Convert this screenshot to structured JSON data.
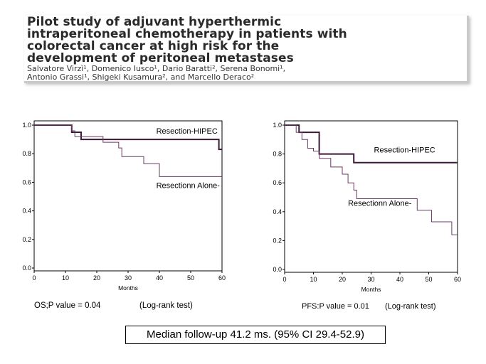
{
  "paper": {
    "title_lines": [
      "Pilot study of adjuvant hyperthermic",
      "intraperitoneal chemotherapy in patients with",
      "colorectal cancer at high risk for the",
      "development of peritoneal metastases"
    ],
    "author_lines": [
      "Salvatore Virzì¹, Domenico Iusco¹, Dario Baratti², Serena Bonomi¹,",
      "Antonio Grassi¹, Shigeki Kusamura², and Marcello Deraco²"
    ]
  },
  "captions": {
    "os_pvalue": "OS;P value = 0.04",
    "os_test": "(Log-rank test)",
    "pfs_pvalue": "PFS:P value = 0.01",
    "pfs_test": "(Log-rank test)"
  },
  "median_followup": "Median follow-up 41.2 ms. (95% CI 29.4-52.9)",
  "chart_data": [
    {
      "type": "line",
      "subtype": "kaplan-meier step curve",
      "xlabel": "Months",
      "ylabel": "",
      "xlim": [
        0,
        60
      ],
      "ylim": [
        0,
        1.0
      ],
      "xticks": [
        "0",
        "10",
        "20",
        "30",
        "40",
        "50",
        "60"
      ],
      "yticks": [
        "0.0",
        "0.2",
        "0.4",
        "0.6",
        "0.8",
        "1.0"
      ],
      "series": [
        {
          "name": "Resection-HIPEC",
          "color": "#3a1a36",
          "stroke_width": 2,
          "steps": [
            [
              0,
              1.0
            ],
            [
              12,
              0.95
            ],
            [
              15,
              0.9
            ],
            [
              59,
              0.83
            ],
            [
              60,
              0.83
            ]
          ]
        },
        {
          "name": "Resectionn Alone-",
          "color": "#6a3a66",
          "stroke_width": 1,
          "steps": [
            [
              0,
              1.0
            ],
            [
              12,
              0.96
            ],
            [
              13,
              0.92
            ],
            [
              22,
              0.88
            ],
            [
              27,
              0.84
            ],
            [
              28,
              0.78
            ],
            [
              35,
              0.73
            ],
            [
              40,
              0.64
            ],
            [
              60,
              0.64
            ]
          ]
        }
      ],
      "labels": [
        {
          "text": "Resection-HIPEC",
          "x": 39,
          "y": 0.94
        },
        {
          "text": "Resectionn Alone-",
          "x": 39,
          "y": 0.56
        }
      ]
    },
    {
      "type": "line",
      "subtype": "kaplan-meier step curve",
      "xlabel": "Months",
      "ylabel": "",
      "xlim": [
        0,
        60
      ],
      "ylim": [
        0,
        1.0
      ],
      "xticks": [
        "0",
        "10",
        "20",
        "30",
        "40",
        "50",
        "60"
      ],
      "yticks": [
        "0.0",
        "0.2",
        "0.4",
        "0.6",
        "0.8",
        "1.0"
      ],
      "series": [
        {
          "name": "Resection-HIPEC",
          "color": "#3a1a36",
          "stroke_width": 2,
          "steps": [
            [
              0,
              1.0
            ],
            [
              5,
              0.95
            ],
            [
              12,
              0.8
            ],
            [
              24,
              0.74
            ],
            [
              60,
              0.74
            ]
          ]
        },
        {
          "name": "Resectionn Alone-",
          "color": "#6a3a66",
          "stroke_width": 1,
          "steps": [
            [
              0,
              1.0
            ],
            [
              4,
              0.95
            ],
            [
              6,
              0.9
            ],
            [
              8,
              0.84
            ],
            [
              10,
              0.82
            ],
            [
              12,
              0.77
            ],
            [
              16,
              0.71
            ],
            [
              20,
              0.66
            ],
            [
              22,
              0.6
            ],
            [
              24,
              0.55
            ],
            [
              25,
              0.49
            ],
            [
              46,
              0.41
            ],
            [
              51,
              0.33
            ],
            [
              58,
              0.24
            ],
            [
              60,
              0.24
            ]
          ]
        }
      ],
      "labels": [
        {
          "text": "Resection-HIPEC",
          "x": 31,
          "y": 0.81
        },
        {
          "text": "Resectionn Alone-",
          "x": 22,
          "y": 0.44
        }
      ]
    }
  ]
}
